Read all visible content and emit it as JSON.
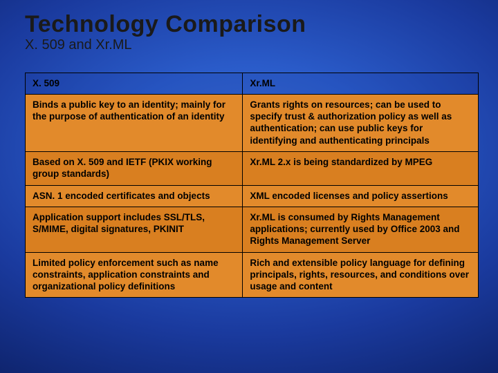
{
  "title": "Technology Comparison",
  "subtitle": "X. 509 and Xr.ML",
  "colors": {
    "background_center": "#3a6fd8",
    "background_edge": "#091a55",
    "table_body": "#e28a2b",
    "table_body_alt": "#d97f20",
    "border": "#000000",
    "title_text": "#1a1a1a",
    "cell_text": "#000000"
  },
  "typography": {
    "title_fontsize": 34,
    "subtitle_fontsize": 20,
    "cell_fontsize": 13.5,
    "font_family": "Arial",
    "title_weight": 700,
    "cell_weight": 700
  },
  "table": {
    "headers": [
      "X. 509",
      "Xr.ML"
    ],
    "column_widths_pct": [
      48,
      52
    ],
    "rows": [
      [
        "Binds a public key to an identity; mainly for the purpose of authentication of an identity",
        "Grants rights on resources; can be used to specify trust & authorization policy as well as authentication; can use public keys for identifying and authenticating principals"
      ],
      [
        "Based on X. 509 and IETF (PKIX working group standards)",
        "Xr.ML 2.x is being standardized by MPEG"
      ],
      [
        "ASN. 1 encoded certificates and objects",
        "XML encoded licenses and policy assertions"
      ],
      [
        "Application support includes SSL/TLS, S/MIME, digital signatures, PKINIT",
        "Xr.ML is consumed by Rights Management applications; currently used by Office 2003 and Rights Management Server"
      ],
      [
        "Limited policy enforcement such as name constraints, application constraints and organizational policy definitions",
        "Rich and extensible policy language for defining principals, rights, resources, and conditions over usage and content"
      ]
    ]
  }
}
